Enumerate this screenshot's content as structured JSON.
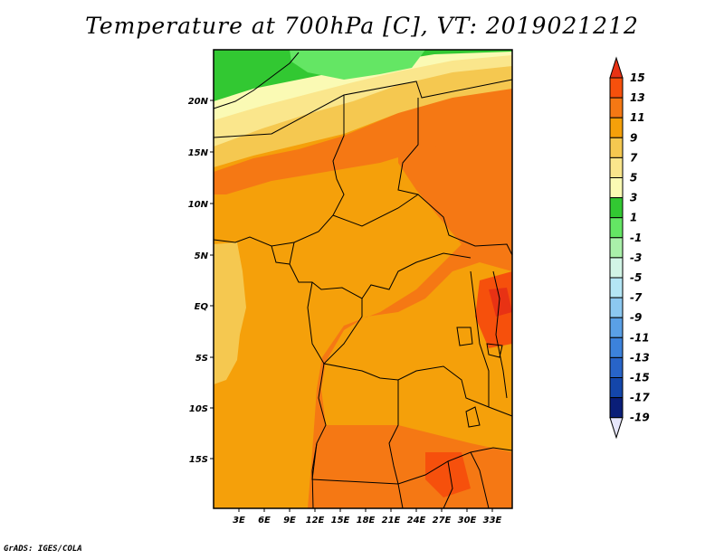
{
  "title": "Temperature at 700hPa [C], VT: 2019021212",
  "credit": "GrADS: IGES/COLA",
  "map": {
    "lat_labels": [
      "20N",
      "15N",
      "10N",
      "5N",
      "EQ",
      "5S",
      "10S",
      "15S"
    ],
    "lon_labels": [
      "3E",
      "6E",
      "9E",
      "12E",
      "15E",
      "18E",
      "21E",
      "24E",
      "27E",
      "30E",
      "33E"
    ]
  },
  "colorbar": {
    "labels": [
      "15",
      "13",
      "11",
      "9",
      "7",
      "5",
      "3",
      "1",
      "-1",
      "-3",
      "-5",
      "-7",
      "-9",
      "-11",
      "-13",
      "-15",
      "-17",
      "-19"
    ],
    "colors": [
      "#e83214",
      "#f6500c",
      "#f57814",
      "#f5a00a",
      "#f5c850",
      "#fae68c",
      "#fafab4",
      "#32c832",
      "#64e664",
      "#aaf0aa",
      "#d2f5e6",
      "#b4e6f5",
      "#8cc8f0",
      "#5aa0e6",
      "#3c82dc",
      "#2864c8",
      "#1446aa",
      "#0a1e78",
      "#000050"
    ],
    "top_arrow_color": "#e83214",
    "bottom_arrow_color": "#e6e6fa"
  },
  "field_colors": {
    "c11": "#f57814",
    "c9": "#f5a00a",
    "c7": "#f5c850",
    "c5": "#fae68c",
    "c3": "#fafab4",
    "c1": "#32c832",
    "cm1": "#64e664",
    "c13": "#f6500c",
    "c15": "#e83214"
  }
}
